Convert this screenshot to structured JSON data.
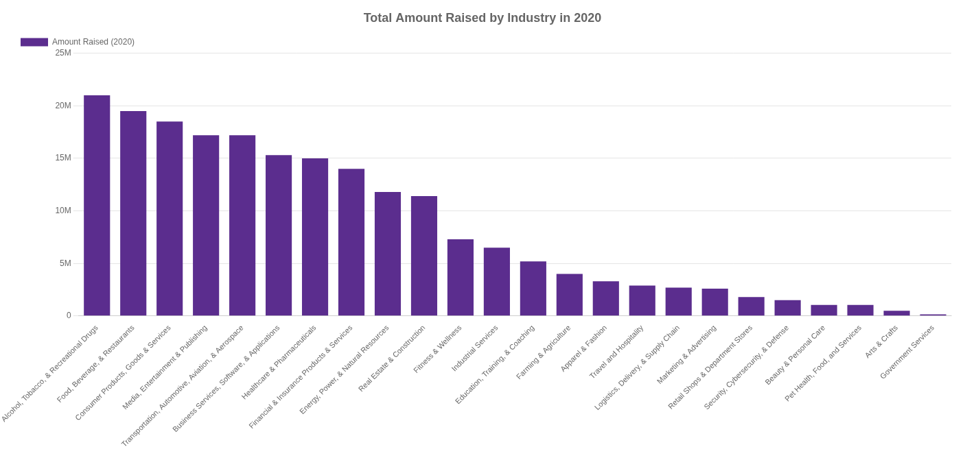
{
  "chart_data": {
    "type": "bar",
    "title": "Total Amount Raised by Industry in 2020",
    "categories": [
      "Alcohol, Tobacco, & Recreational Drugs",
      "Food, Beverage, & Restaurants",
      "Consumer Products, Goods & Services",
      "Media, Entertainment & Publishing",
      "Transportation, Automotive, Aviation, & Aerospace",
      "Business Services, Software, & Applications",
      "Healthcare & Pharmaceuticals",
      "Financial & Insurance Products & Services",
      "Energy, Power, & Natural Resources",
      "Real Estate & Construction",
      "Fitness & Wellness",
      "Industrial Services",
      "Education, Training, & Coaching",
      "Farming & Agriculture",
      "Apparel & Fashion",
      "Travel and Hospitality",
      "Logistics, Delivery, & Supply Chain",
      "Marketing & Advertising",
      "Retail Shops & Department Stores",
      "Security, Cybersecurity, & Defense",
      "Beauty & Personal Care",
      "Pet Health, Food, and Services",
      "Arts & Crafts",
      "Government Services"
    ],
    "series": [
      {
        "name": "Amount Raised (2020)",
        "color": "#5b2d8e",
        "values": [
          21000000,
          19500000,
          18500000,
          17200000,
          17200000,
          15300000,
          15000000,
          14000000,
          11800000,
          11400000,
          7300000,
          6500000,
          5200000,
          4000000,
          3300000,
          2900000,
          2700000,
          2600000,
          1800000,
          1500000,
          1050000,
          1050000,
          500000,
          150000
        ]
      }
    ],
    "ylim": [
      0,
      25000000
    ],
    "yticks": [
      0,
      {
        "value": 5000000,
        "label": "5M"
      },
      {
        "value": 10000000,
        "label": "10M"
      },
      {
        "value": 15000000,
        "label": "15M"
      },
      {
        "value": 20000000,
        "label": "20M"
      },
      {
        "value": 25000000,
        "label": "25M"
      }
    ],
    "grid": true,
    "legend": "top"
  }
}
